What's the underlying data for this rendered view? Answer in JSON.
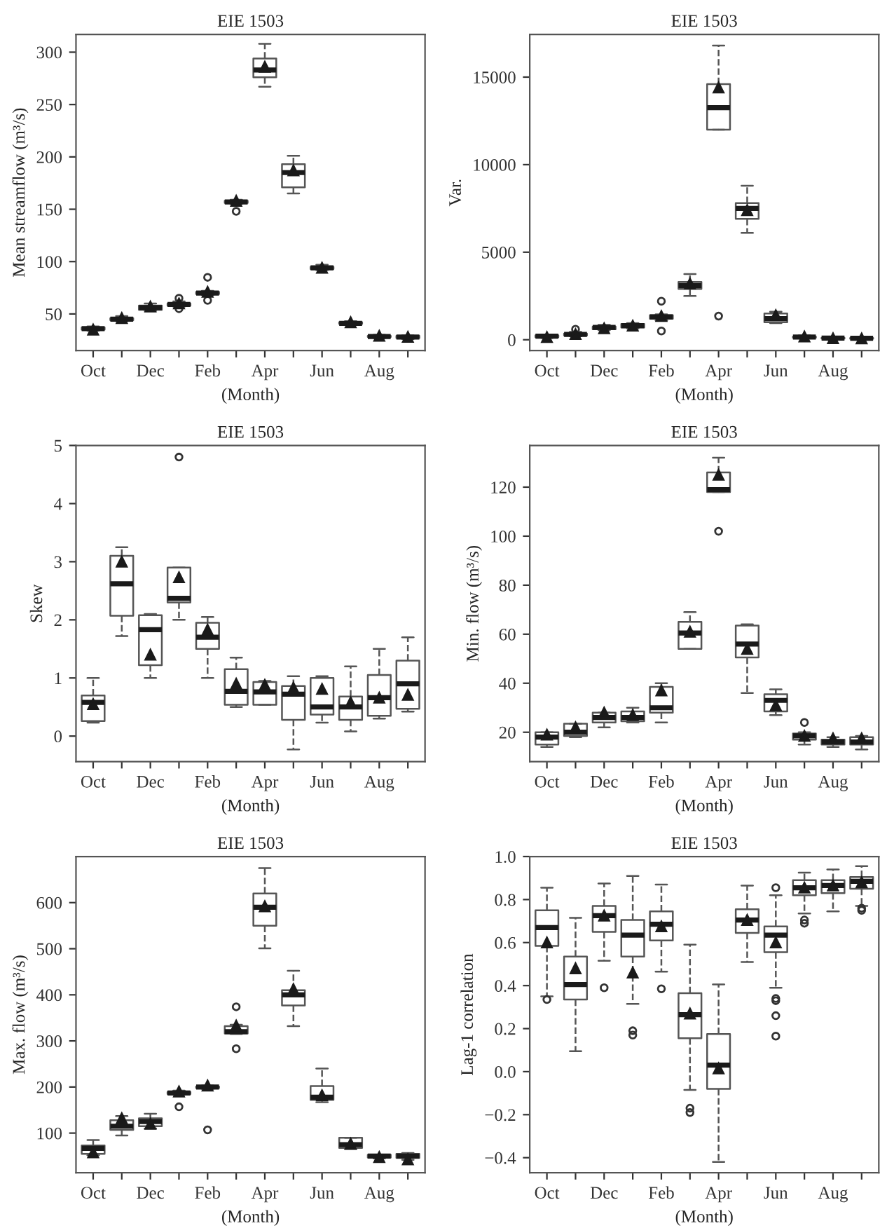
{
  "chart_data": [
    {
      "type": "box",
      "title": "EIE 1503",
      "xlabel": "(Month)",
      "ylabel": "Mean streamflow (m³/s)",
      "categories": [
        "Oct",
        null,
        "Dec",
        null,
        "Feb",
        null,
        "Apr",
        null,
        "Jun",
        null,
        "Aug",
        null
      ],
      "ylim": [
        15,
        317
      ],
      "yticks": [
        50,
        100,
        150,
        200,
        250,
        300
      ],
      "boxes": [
        {
          "low": 34,
          "q1": 35,
          "median": 36,
          "q3": 37,
          "high": 38,
          "mean": 35
        },
        {
          "low": 43,
          "q1": 44,
          "median": 45,
          "q3": 46,
          "high": 48,
          "mean": 46
        },
        {
          "low": 53,
          "q1": 54,
          "median": 56,
          "q3": 58,
          "high": 60,
          "mean": 57
        },
        {
          "low": 57,
          "q1": 58,
          "median": 59,
          "q3": 60,
          "high": 62,
          "mean": 60,
          "outliers": [
            55,
            65
          ]
        },
        {
          "low": 68,
          "q1": 69,
          "median": 70,
          "q3": 71,
          "high": 72,
          "mean": 71,
          "outliers": [
            63,
            85
          ]
        },
        {
          "low": 155,
          "q1": 156,
          "median": 157,
          "q3": 158,
          "high": 159,
          "mean": 158,
          "outliers": [
            148
          ]
        },
        {
          "low": 267,
          "q1": 276,
          "median": 283,
          "q3": 294,
          "high": 308,
          "mean": 286
        },
        {
          "low": 165,
          "q1": 171,
          "median": 185,
          "q3": 193,
          "high": 201,
          "mean": 187
        },
        {
          "low": 92,
          "q1": 93,
          "median": 94,
          "q3": 95,
          "high": 97,
          "mean": 94
        },
        {
          "low": 40,
          "q1": 40.5,
          "median": 41,
          "q3": 42,
          "high": 43,
          "mean": 42
        },
        {
          "low": 27,
          "q1": 28,
          "median": 28.5,
          "q3": 29,
          "high": 30,
          "mean": 29
        },
        {
          "low": 26,
          "q1": 27,
          "median": 28,
          "q3": 29,
          "high": 29.5,
          "mean": 28
        }
      ]
    },
    {
      "type": "box",
      "title": "EIE 1503",
      "xlabel": "(Month)",
      "ylabel": "Var.",
      "categories": [
        "Oct",
        null,
        "Dec",
        null,
        "Feb",
        null,
        "Apr",
        null,
        "Jun",
        null,
        "Aug",
        null
      ],
      "ylim": [
        -620,
        17440
      ],
      "yticks": [
        0,
        5000,
        10000,
        15000
      ],
      "boxes": [
        {
          "low": 100,
          "q1": 150,
          "median": 200,
          "q3": 250,
          "high": 300,
          "mean": 150
        },
        {
          "low": 200,
          "q1": 250,
          "median": 300,
          "q3": 350,
          "high": 450,
          "mean": 320,
          "outliers": [
            600
          ]
        },
        {
          "low": 550,
          "q1": 600,
          "median": 700,
          "q3": 750,
          "high": 850,
          "mean": 650
        },
        {
          "low": 650,
          "q1": 700,
          "median": 800,
          "q3": 900,
          "high": 950,
          "mean": 800
        },
        {
          "low": 1100,
          "q1": 1200,
          "median": 1300,
          "q3": 1400,
          "high": 1450,
          "mean": 1350,
          "outliers": [
            500,
            2200
          ]
        },
        {
          "low": 2500,
          "q1": 2900,
          "median": 3100,
          "q3": 3300,
          "high": 3750,
          "mean": 3200
        },
        {
          "low": 12000,
          "q1": 12000,
          "median": 13250,
          "q3": 14600,
          "high": 16800,
          "mean": 14400,
          "outliers": [
            1350
          ]
        },
        {
          "low": 6100,
          "q1": 6900,
          "median": 7500,
          "q3": 7800,
          "high": 8800,
          "mean": 7400
        },
        {
          "low": 950,
          "q1": 1000,
          "median": 1200,
          "q3": 1500,
          "high": 1600,
          "mean": 1400
        },
        {
          "low": 100,
          "q1": 120,
          "median": 150,
          "q3": 180,
          "high": 250,
          "mean": 180
        },
        {
          "low": 50,
          "q1": 70,
          "median": 90,
          "q3": 110,
          "high": 130,
          "mean": 80
        },
        {
          "low": 40,
          "q1": 60,
          "median": 80,
          "q3": 100,
          "high": 120,
          "mean": 70
        }
      ]
    },
    {
      "type": "box",
      "title": "EIE 1503",
      "xlabel": "(Month)",
      "ylabel": "Skew",
      "categories": [
        "Oct",
        null,
        "Dec",
        null,
        "Feb",
        null,
        "Apr",
        null,
        "Jun",
        null,
        "Aug",
        null
      ],
      "ylim": [
        -0.44,
        5
      ],
      "yticks": [
        0,
        1,
        2,
        3,
        4,
        5
      ],
      "boxes": [
        {
          "low": 0.23,
          "q1": 0.26,
          "median": 0.58,
          "q3": 0.7,
          "high": 1.0,
          "mean": 0.55
        },
        {
          "low": 1.72,
          "q1": 2.07,
          "median": 2.62,
          "q3": 3.1,
          "high": 3.25,
          "mean": 3.0
        },
        {
          "low": 1.0,
          "q1": 1.22,
          "median": 1.83,
          "q3": 2.08,
          "high": 2.1,
          "mean": 1.4
        },
        {
          "low": 2.0,
          "q1": 2.3,
          "median": 2.37,
          "q3": 2.9,
          "high": 2.9,
          "mean": 2.73,
          "outliers": [
            4.8
          ]
        },
        {
          "low": 1.0,
          "q1": 1.5,
          "median": 1.7,
          "q3": 1.95,
          "high": 2.05,
          "mean": 1.83
        },
        {
          "low": 0.5,
          "q1": 0.54,
          "median": 0.77,
          "q3": 1.15,
          "high": 1.35,
          "mean": 0.9
        },
        {
          "low": 0.54,
          "q1": 0.54,
          "median": 0.76,
          "q3": 0.93,
          "high": 0.95,
          "mean": 0.88
        },
        {
          "low": -0.23,
          "q1": 0.28,
          "median": 0.72,
          "q3": 0.86,
          "high": 1.03,
          "mean": 0.83
        },
        {
          "low": 0.23,
          "q1": 0.37,
          "median": 0.5,
          "q3": 1.0,
          "high": 1.03,
          "mean": 0.81
        },
        {
          "low": 0.08,
          "q1": 0.28,
          "median": 0.5,
          "q3": 0.68,
          "high": 1.2,
          "mean": 0.58
        },
        {
          "low": 0.3,
          "q1": 0.35,
          "median": 0.66,
          "q3": 1.05,
          "high": 1.5,
          "mean": 0.66
        },
        {
          "low": 0.42,
          "q1": 0.47,
          "median": 0.9,
          "q3": 1.3,
          "high": 1.7,
          "mean": 0.71
        }
      ]
    },
    {
      "type": "box",
      "title": "EIE 1503",
      "xlabel": "(Month)",
      "ylabel": "Min. flow (m³/s)",
      "categories": [
        "Oct",
        null,
        "Dec",
        null,
        "Feb",
        null,
        "Apr",
        null,
        "Jun",
        null,
        "Aug",
        null
      ],
      "ylim": [
        8,
        137
      ],
      "yticks": [
        20,
        40,
        60,
        80,
        100,
        120
      ],
      "boxes": [
        {
          "low": 14,
          "q1": 15,
          "median": 18,
          "q3": 20,
          "high": 20,
          "mean": 19
        },
        {
          "low": 18,
          "q1": 18.5,
          "median": 20,
          "q3": 23.5,
          "high": 23.5,
          "mean": 22
        },
        {
          "low": 22,
          "q1": 24,
          "median": 26,
          "q3": 28,
          "high": 28,
          "mean": 28
        },
        {
          "low": 24,
          "q1": 24.5,
          "median": 26,
          "q3": 28.5,
          "high": 30,
          "mean": 27
        },
        {
          "low": 24,
          "q1": 28,
          "median": 30,
          "q3": 38.5,
          "high": 40,
          "mean": 37
        },
        {
          "low": 54,
          "q1": 54,
          "median": 60.5,
          "q3": 65,
          "high": 69,
          "mean": 61
        },
        {
          "low": 118,
          "q1": 118,
          "median": 119,
          "q3": 126,
          "high": 132,
          "mean": 125,
          "outliers": [
            102
          ]
        },
        {
          "low": 36,
          "q1": 50.5,
          "median": 56,
          "q3": 63.5,
          "high": 64,
          "mean": 54
        },
        {
          "low": 27,
          "q1": 28.5,
          "median": 33,
          "q3": 35.5,
          "high": 37.5,
          "mean": 31
        },
        {
          "low": 15,
          "q1": 17,
          "median": 18.5,
          "q3": 19.5,
          "high": 20,
          "mean": 18.5,
          "outliers": [
            24
          ]
        },
        {
          "low": 14,
          "q1": 15,
          "median": 16,
          "q3": 17,
          "high": 18,
          "mean": 17.5
        },
        {
          "low": 13,
          "q1": 15,
          "median": 16,
          "q3": 18,
          "high": 18.5,
          "mean": 17.5
        }
      ]
    },
    {
      "type": "box",
      "title": "EIE 1503",
      "xlabel": "(Month)",
      "ylabel": "Max. flow (m³/s)",
      "categories": [
        "Oct",
        null,
        "Dec",
        null,
        "Feb",
        null,
        "Apr",
        null,
        "Jun",
        null,
        "Aug",
        null
      ],
      "ylim": [
        14,
        700
      ],
      "yticks": [
        100,
        200,
        300,
        400,
        500,
        600
      ],
      "boxes": [
        {
          "low": 52,
          "q1": 55,
          "median": 67,
          "q3": 73,
          "high": 85,
          "mean": 58
        },
        {
          "low": 95,
          "q1": 107,
          "median": 115,
          "q3": 128,
          "high": 137,
          "mean": 132
        },
        {
          "low": 110,
          "q1": 115,
          "median": 125,
          "q3": 132,
          "high": 142,
          "mean": 120
        },
        {
          "low": 183,
          "q1": 185,
          "median": 187,
          "q3": 189,
          "high": 192,
          "mean": 190,
          "outliers": [
            157
          ]
        },
        {
          "low": 196,
          "q1": 198,
          "median": 200,
          "q3": 201,
          "high": 203,
          "mean": 203,
          "outliers": [
            107
          ]
        },
        {
          "low": 315,
          "q1": 316,
          "median": 320,
          "q3": 332,
          "high": 335,
          "mean": 333,
          "outliers": [
            283,
            374
          ]
        },
        {
          "low": 501,
          "q1": 550,
          "median": 590,
          "q3": 620,
          "high": 675,
          "mean": 592
        },
        {
          "low": 332,
          "q1": 377,
          "median": 400,
          "q3": 410,
          "high": 452,
          "mean": 412
        },
        {
          "low": 167,
          "q1": 172,
          "median": 178,
          "q3": 202,
          "high": 240,
          "mean": 182
        },
        {
          "low": 65,
          "q1": 68,
          "median": 75,
          "q3": 90,
          "high": 90,
          "mean": 77
        },
        {
          "low": 45,
          "q1": 47,
          "median": 50,
          "q3": 53,
          "high": 53,
          "mean": 48
        },
        {
          "low": 42,
          "q1": 46,
          "median": 50,
          "q3": 55,
          "high": 57,
          "mean": 43
        }
      ]
    },
    {
      "type": "box",
      "title": "EIE 1503",
      "xlabel": "(Month)",
      "ylabel": "Lag-1 correlation",
      "categories": [
        "Oct",
        null,
        "Dec",
        null,
        "Feb",
        null,
        "Apr",
        null,
        "Jun",
        null,
        "Aug",
        null
      ],
      "ylim": [
        -0.47,
        1.0
      ],
      "yticks": [
        {
          "value": -0.4,
          "label": "−0.4"
        },
        {
          "value": -0.2,
          "label": "−0.2"
        },
        {
          "value": 0,
          "label": "0.0"
        },
        0.2,
        0.4,
        0.6,
        0.8,
        {
          "value": 1,
          "label": "1.0"
        }
      ],
      "boxes": [
        {
          "low": 0.35,
          "q1": 0.585,
          "median": 0.67,
          "q3": 0.75,
          "high": 0.855,
          "mean": 0.6,
          "outliers": [
            0.335
          ]
        },
        {
          "low": 0.095,
          "q1": 0.335,
          "median": 0.405,
          "q3": 0.535,
          "high": 0.715,
          "mean": 0.48
        },
        {
          "low": 0.515,
          "q1": 0.65,
          "median": 0.725,
          "q3": 0.77,
          "high": 0.875,
          "mean": 0.725,
          "outliers": [
            0.39
          ]
        },
        {
          "low": 0.315,
          "q1": 0.535,
          "median": 0.635,
          "q3": 0.705,
          "high": 0.91,
          "mean": 0.46,
          "outliers": [
            0.19,
            0.17
          ]
        },
        {
          "low": 0.465,
          "q1": 0.61,
          "median": 0.685,
          "q3": 0.745,
          "high": 0.87,
          "mean": 0.675,
          "outliers": [
            0.385
          ]
        },
        {
          "low": -0.085,
          "q1": 0.155,
          "median": 0.265,
          "q3": 0.365,
          "high": 0.59,
          "mean": 0.27,
          "outliers": [
            -0.17,
            -0.19
          ]
        },
        {
          "low": -0.42,
          "q1": -0.08,
          "median": 0.03,
          "q3": 0.175,
          "high": 0.405,
          "mean": 0.015
        },
        {
          "low": 0.51,
          "q1": 0.645,
          "median": 0.705,
          "q3": 0.755,
          "high": 0.865,
          "mean": 0.705
        },
        {
          "low": 0.39,
          "q1": 0.555,
          "median": 0.635,
          "q3": 0.675,
          "high": 0.82,
          "mean": 0.6,
          "outliers": [
            0.855,
            0.34,
            0.33,
            0.26,
            0.165
          ]
        },
        {
          "low": 0.735,
          "q1": 0.82,
          "median": 0.855,
          "q3": 0.89,
          "high": 0.925,
          "mean": 0.855,
          "outliers": [
            0.705,
            0.69
          ]
        },
        {
          "low": 0.745,
          "q1": 0.83,
          "median": 0.865,
          "q3": 0.89,
          "high": 0.94,
          "mean": 0.865
        },
        {
          "low": 0.77,
          "q1": 0.85,
          "median": 0.885,
          "q3": 0.905,
          "high": 0.955,
          "mean": 0.88,
          "outliers": [
            0.76,
            0.75
          ]
        }
      ]
    }
  ]
}
